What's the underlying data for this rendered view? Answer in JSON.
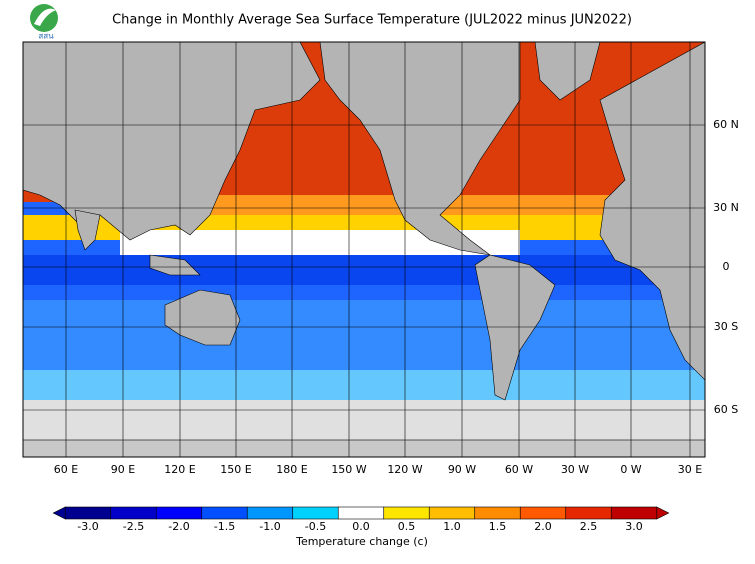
{
  "header": {
    "title": "Change in Monthly Average Sea Surface Temperature (JUL2022 minus JUN2022)"
  },
  "logo": {
    "text": "สสน"
  },
  "map": {
    "lon_labels": [
      "60 E",
      "90 E",
      "120 E",
      "150 E",
      "180 E",
      "150 W",
      "120 W",
      "90 W",
      "60 W",
      "30 W",
      "0 W",
      "30 E"
    ],
    "lat_labels": [
      "60 N",
      "30 N",
      "0",
      "30 S",
      "60 S"
    ]
  },
  "colorbar": {
    "ticks": [
      {
        "value": -3,
        "label": "-3.0"
      },
      {
        "value": -2.5,
        "label": "-2.5"
      },
      {
        "value": -2,
        "label": "-2.0"
      },
      {
        "value": -1.5,
        "label": "-1.5"
      },
      {
        "value": -1,
        "label": "-1.0"
      },
      {
        "value": -0.5,
        "label": "-0.5"
      },
      {
        "value": 0,
        "label": "0.0"
      },
      {
        "value": 0.5,
        "label": "0.5"
      },
      {
        "value": 1,
        "label": "1.0"
      },
      {
        "value": 1.5,
        "label": "1.5"
      },
      {
        "value": 2,
        "label": "2.0"
      },
      {
        "value": 2.5,
        "label": "2.5"
      },
      {
        "value": 3,
        "label": "3.0"
      }
    ],
    "colors": [
      "#000090",
      "#0000c8",
      "#0000ff",
      "#0050ff",
      "#0096ff",
      "#00d2ff",
      "#ffffff",
      "#ffe600",
      "#ffbe00",
      "#ff8c00",
      "#ff5a00",
      "#e62800",
      "#be0000"
    ],
    "label": "Temperature change  (c)"
  }
}
